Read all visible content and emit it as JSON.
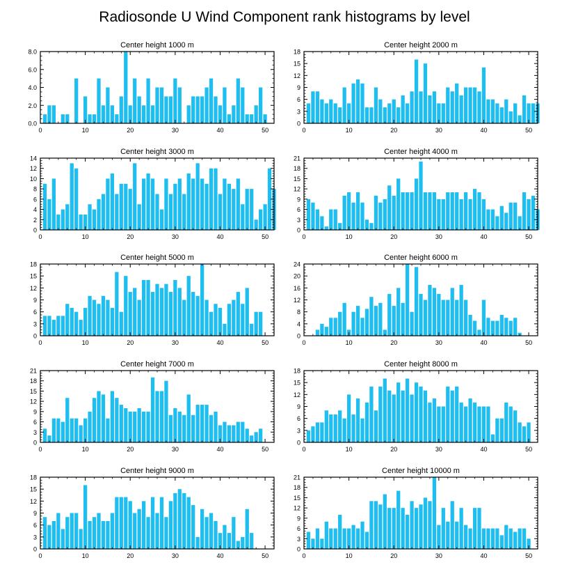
{
  "title": "Radiosonde U Wind Component rank histograms by level",
  "style": {
    "bar_color": "#1ebef0",
    "axis_color": "#000000"
  },
  "chart_data": [
    {
      "type": "bar",
      "title": "Center height 1000 m",
      "xlim": [
        0,
        52
      ],
      "ylim": [
        0,
        8
      ],
      "yticks": [
        0,
        2,
        4,
        6,
        8
      ],
      "ytick_labels": [
        "0.0",
        "2.0",
        "4.0",
        "6.0",
        "8.0"
      ],
      "xticks": [
        0,
        10,
        20,
        30,
        40,
        50
      ],
      "values": [
        1,
        2,
        2,
        0,
        1,
        1,
        0,
        5,
        0,
        3,
        1,
        1,
        5,
        2,
        4,
        2,
        1,
        3,
        8,
        2,
        5,
        3,
        2,
        5,
        2,
        4,
        4,
        3,
        3,
        5,
        4,
        0,
        2,
        3,
        3,
        3,
        4,
        5,
        3,
        2,
        4,
        1,
        2,
        5,
        4,
        1,
        1,
        2,
        4,
        1
      ]
    },
    {
      "type": "bar",
      "title": "Center height 2000 m",
      "xlim": [
        0,
        52
      ],
      "ylim": [
        0,
        18
      ],
      "yticks": [
        0,
        3,
        6,
        9,
        12,
        15,
        18
      ],
      "ytick_labels": [
        "0",
        "3",
        "6",
        "9",
        "12",
        "15",
        "18"
      ],
      "xticks": [
        0,
        10,
        20,
        30,
        40,
        50
      ],
      "values": [
        5,
        8,
        8,
        6,
        5,
        6,
        5,
        4,
        9,
        5,
        10,
        11,
        10,
        4,
        4,
        9,
        6,
        4,
        5,
        6,
        4,
        7,
        5,
        8,
        16,
        8,
        15,
        7,
        8,
        5,
        5,
        9,
        8,
        10,
        7,
        9,
        9,
        9,
        8,
        14,
        6,
        6,
        5,
        4,
        6,
        3,
        5,
        2,
        7,
        5,
        5,
        5
      ]
    },
    {
      "type": "bar",
      "title": "Center height 3000 m",
      "xlim": [
        0,
        52
      ],
      "ylim": [
        0,
        14
      ],
      "yticks": [
        0,
        2,
        4,
        6,
        8,
        10,
        12,
        14
      ],
      "ytick_labels": [
        "0",
        "2",
        "4",
        "6",
        "8",
        "10",
        "12",
        "14"
      ],
      "xticks": [
        0,
        10,
        20,
        30,
        40,
        50
      ],
      "values": [
        9,
        6,
        10,
        3,
        4,
        5,
        13,
        12,
        3,
        3,
        5,
        4,
        6,
        7,
        10,
        11,
        7,
        9,
        9,
        8,
        13,
        5,
        10,
        11,
        10,
        7,
        4,
        10,
        7,
        9,
        10,
        7,
        11,
        10,
        13,
        10,
        9,
        12,
        12,
        7,
        10,
        9,
        8,
        10,
        5,
        8,
        8,
        2,
        4,
        5,
        12,
        8
      ]
    },
    {
      "type": "bar",
      "title": "Center height 4000 m",
      "xlim": [
        0,
        52
      ],
      "ylim": [
        0,
        21
      ],
      "yticks": [
        0,
        3,
        6,
        9,
        12,
        15,
        18,
        21
      ],
      "ytick_labels": [
        "0",
        "3",
        "6",
        "9",
        "12",
        "15",
        "18",
        "21"
      ],
      "xticks": [
        0,
        10,
        20,
        30,
        40,
        50
      ],
      "values": [
        9,
        8,
        6,
        4,
        1,
        6,
        6,
        2,
        10,
        11,
        8,
        11,
        8,
        3,
        2,
        10,
        8,
        9,
        13,
        10,
        15,
        11,
        11,
        11,
        15,
        20,
        11,
        11,
        11,
        9,
        9,
        11,
        11,
        11,
        9,
        11,
        9,
        12,
        11,
        9,
        6,
        6,
        4,
        7,
        5,
        8,
        8,
        4,
        11,
        9,
        10,
        6
      ]
    },
    {
      "type": "bar",
      "title": "Center height 5000 m",
      "xlim": [
        0,
        52
      ],
      "ylim": [
        0,
        18
      ],
      "yticks": [
        0,
        3,
        6,
        9,
        12,
        15,
        18
      ],
      "ytick_labels": [
        "0",
        "3",
        "6",
        "9",
        "12",
        "15",
        "18"
      ],
      "xticks": [
        0,
        10,
        20,
        30,
        40,
        50
      ],
      "values": [
        5,
        5,
        4,
        5,
        5,
        8,
        7,
        6,
        4,
        7,
        10,
        9,
        8,
        10,
        9,
        7,
        16,
        6,
        15,
        11,
        12,
        9,
        14,
        14,
        11,
        13,
        12,
        13,
        11,
        14,
        12,
        9,
        15,
        11,
        10,
        18,
        9,
        6,
        8,
        7,
        3,
        8,
        9,
        11,
        8,
        12,
        3,
        6,
        6
      ]
    },
    {
      "type": "bar",
      "title": "Center height 6000 m",
      "xlim": [
        0,
        52
      ],
      "ylim": [
        0,
        24
      ],
      "yticks": [
        0,
        4,
        8,
        12,
        16,
        20,
        24
      ],
      "ytick_labels": [
        "0",
        "4",
        "8",
        "12",
        "16",
        "20",
        "24"
      ],
      "xticks": [
        0,
        10,
        20,
        30,
        40,
        50
      ],
      "values": [
        0,
        0,
        2,
        4,
        3,
        6,
        6,
        8,
        11,
        2,
        8,
        10,
        6,
        9,
        13,
        10,
        11,
        2,
        14,
        10,
        16,
        11,
        24,
        8,
        23,
        14,
        12,
        17,
        16,
        14,
        12,
        12,
        16,
        12,
        17,
        12,
        7,
        5,
        2,
        12,
        6,
        5,
        5,
        7,
        6,
        5,
        6,
        1
      ]
    },
    {
      "type": "bar",
      "title": "Center height 7000 m",
      "xlim": [
        0,
        52
      ],
      "ylim": [
        0,
        21
      ],
      "yticks": [
        0,
        3,
        6,
        9,
        12,
        15,
        18,
        21
      ],
      "ytick_labels": [
        "0",
        "3",
        "6",
        "9",
        "12",
        "15",
        "18",
        "21"
      ],
      "xticks": [
        0,
        10,
        20,
        30,
        40,
        50
      ],
      "values": [
        4,
        2,
        7,
        7,
        6,
        13,
        7,
        7,
        5,
        7,
        9,
        13,
        15,
        14,
        7,
        15,
        13,
        11,
        10,
        9,
        9,
        10,
        9,
        9,
        19,
        15,
        15,
        18,
        8,
        10,
        9,
        8,
        14,
        8,
        11,
        11,
        11,
        8,
        9,
        5,
        6,
        5,
        5,
        6,
        6,
        4,
        2,
        3,
        4
      ]
    },
    {
      "type": "bar",
      "title": "Center height 8000 m",
      "xlim": [
        0,
        52
      ],
      "ylim": [
        0,
        18
      ],
      "yticks": [
        0,
        3,
        6,
        9,
        12,
        15,
        18
      ],
      "ytick_labels": [
        "0",
        "3",
        "6",
        "9",
        "12",
        "15",
        "18"
      ],
      "xticks": [
        0,
        10,
        20,
        30,
        40,
        50
      ],
      "values": [
        3,
        4,
        5,
        5,
        8,
        7,
        7,
        8,
        6,
        12,
        7,
        11,
        6,
        10,
        14,
        8,
        14,
        16,
        13,
        12,
        15,
        13,
        16,
        12,
        15,
        14,
        13,
        10,
        11,
        9,
        9,
        14,
        13,
        14,
        10,
        9,
        11,
        10,
        9,
        9,
        9,
        2,
        6,
        6,
        10,
        9,
        8,
        5,
        4,
        5
      ]
    },
    {
      "type": "bar",
      "title": "Center height 9000 m",
      "xlim": [
        0,
        52
      ],
      "ylim": [
        0,
        18
      ],
      "yticks": [
        0,
        3,
        6,
        9,
        12,
        15,
        18
      ],
      "ytick_labels": [
        "0",
        "3",
        "6",
        "9",
        "12",
        "15",
        "18"
      ],
      "xticks": [
        0,
        10,
        20,
        30,
        40,
        50
      ],
      "values": [
        8,
        6,
        7,
        9,
        5,
        8,
        9,
        9,
        5,
        16,
        7,
        8,
        9,
        7,
        7,
        9,
        13,
        13,
        13,
        12,
        9,
        10,
        12,
        8,
        13,
        9,
        13,
        8,
        12,
        14,
        15,
        14,
        13,
        11,
        3,
        10,
        8,
        9,
        7,
        4,
        6,
        4,
        8,
        2,
        3,
        10,
        4
      ]
    },
    {
      "type": "bar",
      "title": "Center height 10000 m",
      "xlim": [
        0,
        52
      ],
      "ylim": [
        0,
        21
      ],
      "yticks": [
        0,
        3,
        6,
        9,
        12,
        15,
        18,
        21
      ],
      "ytick_labels": [
        "0",
        "3",
        "6",
        "9",
        "12",
        "15",
        "18",
        "21"
      ],
      "xticks": [
        0,
        10,
        20,
        30,
        40,
        50
      ],
      "values": [
        5,
        3,
        6,
        3,
        8,
        6,
        6,
        10,
        6,
        6,
        7,
        6,
        8,
        5,
        14,
        14,
        13,
        16,
        12,
        12,
        17,
        12,
        10,
        14,
        12,
        13,
        15,
        14,
        21,
        7,
        12,
        8,
        14,
        8,
        12,
        7,
        6,
        12,
        12,
        6,
        6,
        6,
        6,
        4,
        7,
        6,
        5,
        6,
        6,
        3
      ]
    }
  ]
}
